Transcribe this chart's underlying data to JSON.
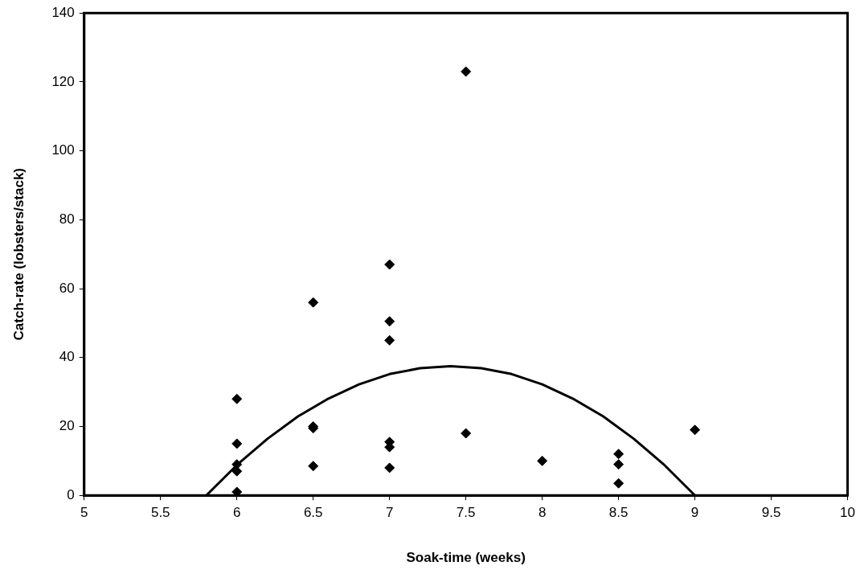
{
  "chart_data": {
    "type": "scatter",
    "xlabel": "Soak-time (weeks)",
    "ylabel": "Catch-rate (lobsters/stack)",
    "xlim": [
      5,
      10
    ],
    "xticks": [
      5,
      5.5,
      6,
      6.5,
      7,
      7.5,
      8,
      8.5,
      9,
      9.5,
      10
    ],
    "ylim": [
      0,
      140
    ],
    "yticks": [
      0,
      20,
      40,
      60,
      80,
      100,
      120,
      140
    ],
    "grid": false,
    "legend": false,
    "marker": "diamond",
    "series": [
      {
        "color": "#000000",
        "x": [
          6,
          6,
          6,
          6,
          6,
          6.5,
          6.5,
          6.5,
          6.5,
          7,
          7,
          7,
          7,
          7,
          7,
          7.5,
          7.5,
          8,
          8.5,
          8.5,
          8.5,
          9
        ],
        "values": [
          28,
          15,
          9,
          7,
          1,
          56,
          20,
          19.5,
          8.5,
          67,
          50.5,
          45,
          15.5,
          14,
          8,
          123,
          18,
          10,
          12,
          9,
          3.5,
          19
        ]
      },
      {
        "type": "line",
        "color": "#000000",
        "marker": "none",
        "line_style": "solid",
        "x": [
          5.8,
          6,
          6.2,
          6.4,
          6.6,
          6.8,
          7,
          7.2,
          7.4,
          7.6,
          7.8,
          8,
          8.2,
          8.4,
          8.6,
          8.8,
          9
        ],
        "values": [
          0,
          8.8,
          16.4,
          22.9,
          28.1,
          32.2,
          35.2,
          36.9,
          37.5,
          36.9,
          35.2,
          32.2,
          28.1,
          22.9,
          16.4,
          8.8,
          0
        ]
      }
    ]
  }
}
